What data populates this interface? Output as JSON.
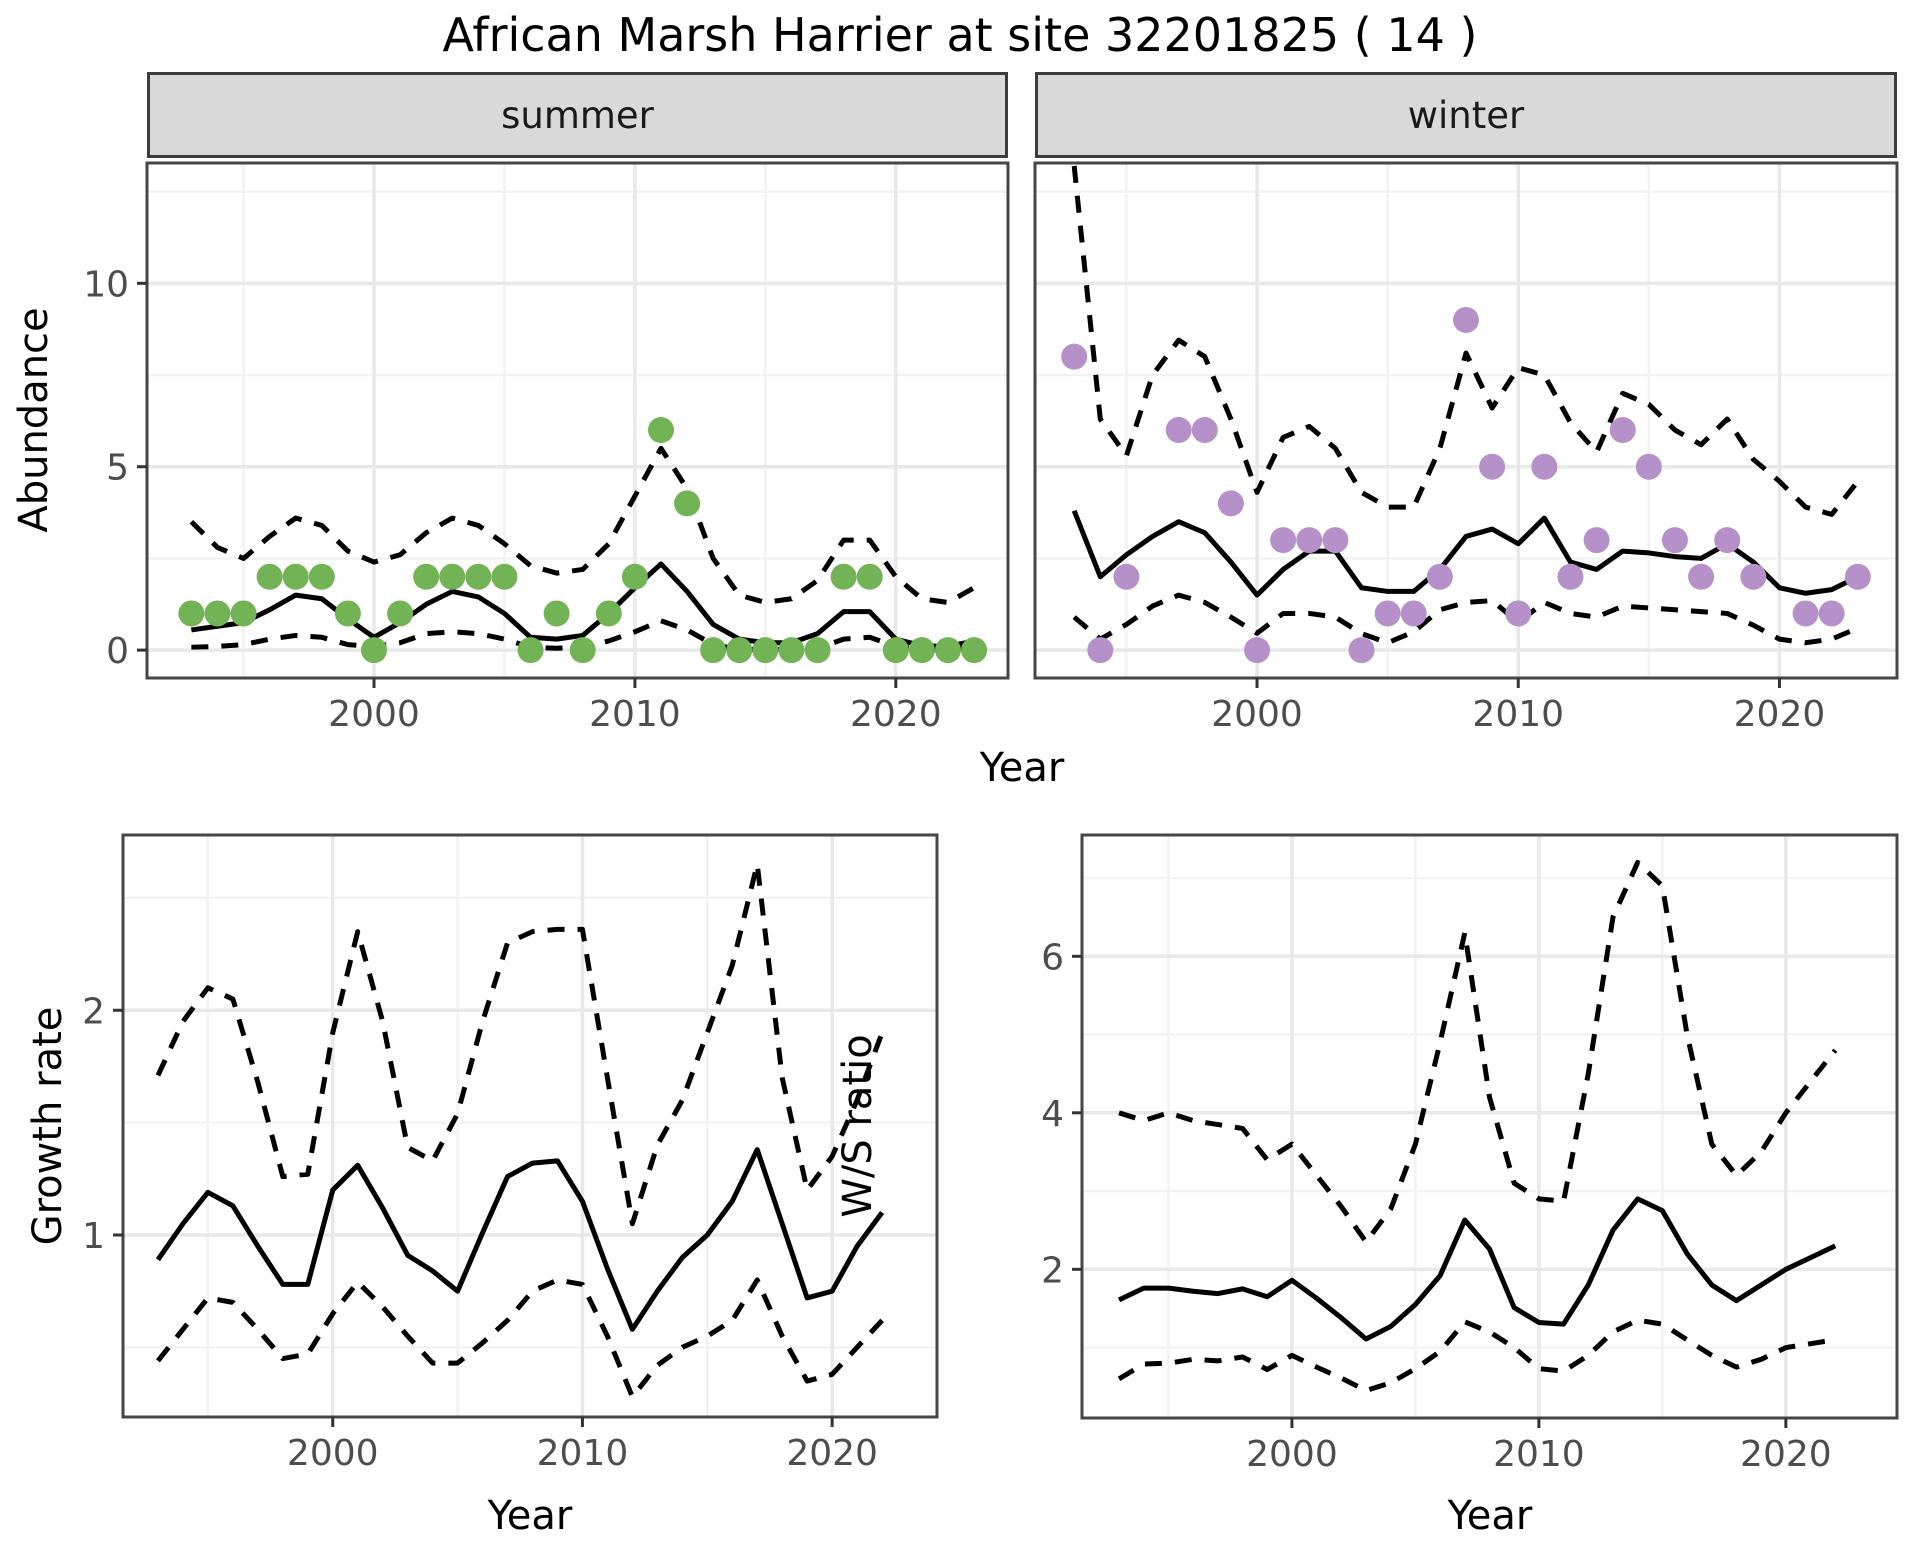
{
  "title": "African Marsh Harrier at site 32201825 ( 14 )",
  "facets": {
    "summer": "summer",
    "winter": "winter"
  },
  "axis_titles": {
    "abundance": "Abundance",
    "top_year": "Year",
    "growth_rate": "Growth rate",
    "growth_year": "Year",
    "ws_ratio": "W/S ratio",
    "ws_year": "Year"
  },
  "colors": {
    "summer_point": "#72b356",
    "winter_point": "#b691c9",
    "line": "#000000",
    "grid_major": "#e8e8e8",
    "grid_minor": "#f2f2f2",
    "panel_border": "#464646",
    "strip_bg": "#d9d9d9",
    "tick_text": "#4d4d4d",
    "tick_mark": "#333333"
  },
  "chart_data": [
    {
      "id": "abundance-summer",
      "type": "line",
      "title": "summer",
      "xlabel": "Year",
      "ylabel": "Abundance",
      "x": [
        1993,
        1994,
        1995,
        1996,
        1997,
        1998,
        1999,
        2000,
        2001,
        2002,
        2003,
        2004,
        2005,
        2006,
        2007,
        2008,
        2009,
        2010,
        2011,
        2012,
        2013,
        2014,
        2015,
        2016,
        2017,
        2018,
        2019,
        2020,
        2021,
        2022,
        2023
      ],
      "series": [
        {
          "name": "observed",
          "style": "points",
          "values": [
            1,
            1,
            1,
            2,
            2,
            2,
            1,
            0,
            1,
            2,
            2,
            2,
            2,
            0,
            1,
            0,
            1,
            2,
            6,
            4,
            0,
            0,
            0,
            0,
            0,
            2,
            2,
            0,
            0,
            0,
            0
          ]
        },
        {
          "name": "upper_ci",
          "style": "dashed",
          "values": [
            3.5,
            2.8,
            2.5,
            3.1,
            3.6,
            3.4,
            2.7,
            2.4,
            2.6,
            3.2,
            3.6,
            3.4,
            2.9,
            2.3,
            2.1,
            2.2,
            2.9,
            4.2,
            5.5,
            4.4,
            2.5,
            1.5,
            1.3,
            1.4,
            1.9,
            3.0,
            3.0,
            2.0,
            1.4,
            1.3,
            1.7
          ]
        },
        {
          "name": "lower_ci",
          "style": "dashed",
          "values": [
            0.08,
            0.1,
            0.15,
            0.3,
            0.4,
            0.35,
            0.15,
            0.1,
            0.2,
            0.45,
            0.5,
            0.45,
            0.3,
            0.08,
            0.05,
            0.08,
            0.25,
            0.5,
            0.8,
            0.55,
            0.15,
            0.02,
            0.02,
            0.02,
            0.05,
            0.3,
            0.35,
            0.1,
            0.02,
            0.02,
            0.05
          ]
        },
        {
          "name": "fit",
          "style": "solid",
          "values": [
            0.55,
            0.65,
            0.75,
            1.1,
            1.5,
            1.4,
            0.85,
            0.35,
            0.75,
            1.25,
            1.6,
            1.45,
            1.0,
            0.35,
            0.3,
            0.4,
            1.0,
            1.7,
            2.35,
            1.6,
            0.7,
            0.3,
            0.2,
            0.2,
            0.45,
            1.05,
            1.05,
            0.3,
            0.12,
            0.1,
            0.25
          ]
        }
      ],
      "xlim": [
        1991.3,
        2024.3
      ],
      "ylim": [
        -0.76,
        13.28
      ],
      "xticks": [
        2000,
        2010,
        2020
      ],
      "xticks_minor": [
        1995,
        2005,
        2015
      ],
      "yticks": [
        0,
        5,
        10
      ],
      "yticks_minor": [
        2.5,
        7.5,
        12.5
      ],
      "grid": true,
      "legend": "none"
    },
    {
      "id": "abundance-winter",
      "type": "line",
      "title": "winter",
      "xlabel": "Year",
      "ylabel": "Abundance",
      "x": [
        1993,
        1994,
        1995,
        1996,
        1997,
        1998,
        1999,
        2000,
        2001,
        2002,
        2003,
        2004,
        2005,
        2006,
        2007,
        2008,
        2009,
        2010,
        2011,
        2012,
        2013,
        2014,
        2015,
        2016,
        2017,
        2018,
        2019,
        2020,
        2021,
        2022,
        2023
      ],
      "series": [
        {
          "name": "observed",
          "style": "points",
          "values": [
            8,
            0,
            2,
            null,
            6,
            6,
            4,
            0,
            3,
            3,
            3,
            0,
            1,
            1,
            2,
            9,
            5,
            1,
            5,
            2,
            3,
            6,
            5,
            3,
            2,
            3,
            2,
            null,
            1,
            1,
            2
          ]
        },
        {
          "name": "upper_ci",
          "style": "dashed",
          "values": [
            13.2,
            6.3,
            5.3,
            7.5,
            8.45,
            8.0,
            6.3,
            4.3,
            5.8,
            6.1,
            5.5,
            4.3,
            3.9,
            3.9,
            5.5,
            8.1,
            6.6,
            7.7,
            7.5,
            6.2,
            5.4,
            7.0,
            6.7,
            6.0,
            5.6,
            6.3,
            5.2,
            4.6,
            3.9,
            3.7,
            4.6
          ]
        },
        {
          "name": "lower_ci",
          "style": "dashed",
          "values": [
            0.9,
            0.3,
            0.7,
            1.2,
            1.5,
            1.3,
            0.9,
            0.46,
            1.0,
            1.0,
            0.9,
            0.45,
            0.2,
            0.5,
            1.1,
            1.3,
            1.35,
            0.76,
            1.3,
            1.0,
            0.9,
            1.2,
            1.15,
            1.1,
            1.05,
            1.0,
            0.68,
            0.3,
            0.2,
            0.3,
            0.6
          ]
        },
        {
          "name": "fit",
          "style": "solid",
          "values": [
            3.8,
            2.0,
            2.6,
            3.1,
            3.5,
            3.2,
            2.4,
            1.5,
            2.2,
            2.7,
            2.7,
            1.7,
            1.6,
            1.6,
            2.2,
            3.1,
            3.3,
            2.9,
            3.6,
            2.4,
            2.2,
            2.7,
            2.65,
            2.55,
            2.5,
            2.9,
            2.4,
            1.7,
            1.55,
            1.65,
            2.0
          ]
        }
      ],
      "xlim": [
        1991.5,
        2024.5
      ],
      "ylim": [
        -0.76,
        13.28
      ],
      "xticks": [
        2000,
        2010,
        2020
      ],
      "xticks_minor": [
        1995,
        2005,
        2015
      ],
      "yticks": [
        0,
        5,
        10
      ],
      "yticks_minor": [
        2.5,
        7.5,
        12.5
      ],
      "grid": true,
      "legend": "none"
    },
    {
      "id": "growth-rate",
      "type": "line",
      "title": "",
      "xlabel": "Year",
      "ylabel": "Growth rate",
      "x": [
        1993,
        1994,
        1995,
        1996,
        1997,
        1998,
        1999,
        2000,
        2001,
        2002,
        2003,
        2004,
        2005,
        2006,
        2007,
        2008,
        2009,
        2010,
        2011,
        2012,
        2013,
        2014,
        2015,
        2016,
        2017,
        2018,
        2019,
        2020,
        2021,
        2022
      ],
      "series": [
        {
          "name": "upper_ci",
          "style": "dashed",
          "values": [
            1.71,
            1.95,
            2.1,
            2.05,
            1.68,
            1.26,
            1.27,
            1.9,
            2.35,
            1.95,
            1.39,
            1.33,
            1.54,
            1.95,
            2.3,
            2.35,
            2.36,
            2.36,
            1.7,
            1.05,
            1.4,
            1.6,
            1.9,
            2.2,
            2.65,
            1.7,
            1.2,
            1.35,
            1.6,
            1.9
          ]
        },
        {
          "name": "lower_ci",
          "style": "dashed",
          "values": [
            0.44,
            0.58,
            0.72,
            0.7,
            0.58,
            0.45,
            0.47,
            0.65,
            0.79,
            0.68,
            0.55,
            0.43,
            0.43,
            0.52,
            0.62,
            0.75,
            0.8,
            0.78,
            0.55,
            0.28,
            0.42,
            0.5,
            0.55,
            0.62,
            0.8,
            0.55,
            0.35,
            0.38,
            0.5,
            0.62
          ]
        },
        {
          "name": "fit",
          "style": "solid",
          "values": [
            0.89,
            1.05,
            1.19,
            1.13,
            0.95,
            0.78,
            0.78,
            1.2,
            1.31,
            1.12,
            0.91,
            0.84,
            0.75,
            1.01,
            1.26,
            1.32,
            1.33,
            1.15,
            0.85,
            0.58,
            0.75,
            0.9,
            1.0,
            1.15,
            1.38,
            1.05,
            0.72,
            0.75,
            0.95,
            1.1
          ]
        }
      ],
      "xlim": [
        1991.6,
        2024.2
      ],
      "ylim": [
        0.19,
        2.78
      ],
      "xticks": [
        2000,
        2010,
        2020
      ],
      "xticks_minor": [
        1995,
        2005,
        2015
      ],
      "yticks": [
        1,
        2
      ],
      "yticks_minor": [
        0.5,
        1.5,
        2.5
      ],
      "grid": true,
      "legend": "none"
    },
    {
      "id": "ws-ratio",
      "type": "line",
      "title": "",
      "xlabel": "Year",
      "ylabel": "W/S ratio",
      "x": [
        1993,
        1994,
        1995,
        1996,
        1997,
        1998,
        1999,
        2000,
        2001,
        2002,
        2003,
        2004,
        2005,
        2006,
        2007,
        2008,
        2009,
        2010,
        2011,
        2012,
        2013,
        2014,
        2015,
        2016,
        2017,
        2018,
        2019,
        2020,
        2021,
        2022
      ],
      "series": [
        {
          "name": "upper_ci",
          "style": "dashed",
          "values": [
            4.0,
            3.9,
            4.0,
            3.9,
            3.85,
            3.8,
            3.4,
            3.6,
            3.2,
            2.8,
            2.35,
            2.77,
            3.6,
            4.9,
            6.3,
            4.2,
            3.1,
            2.9,
            2.87,
            4.5,
            6.5,
            7.2,
            6.9,
            5.0,
            3.6,
            3.2,
            3.5,
            4.0,
            4.4,
            4.8
          ]
        },
        {
          "name": "lower_ci",
          "style": "dashed",
          "values": [
            0.6,
            0.79,
            0.8,
            0.85,
            0.83,
            0.88,
            0.72,
            0.9,
            0.75,
            0.61,
            0.45,
            0.55,
            0.73,
            0.95,
            1.33,
            1.2,
            1.0,
            0.73,
            0.7,
            0.9,
            1.2,
            1.35,
            1.3,
            1.1,
            0.9,
            0.75,
            0.85,
            1.0,
            1.05,
            1.1
          ]
        },
        {
          "name": "fit",
          "style": "solid",
          "values": [
            1.61,
            1.76,
            1.76,
            1.72,
            1.69,
            1.75,
            1.65,
            1.86,
            1.63,
            1.38,
            1.11,
            1.27,
            1.55,
            1.92,
            2.63,
            2.26,
            1.51,
            1.32,
            1.3,
            1.8,
            2.5,
            2.9,
            2.75,
            2.2,
            1.8,
            1.6,
            1.8,
            2.0,
            2.15,
            2.3
          ]
        }
      ],
      "xlim": [
        1991.5,
        2024.5
      ],
      "ylim": [
        0.1,
        7.55
      ],
      "xticks": [
        2000,
        2010,
        2020
      ],
      "xticks_minor": [
        1995,
        2005,
        2015
      ],
      "yticks": [
        2,
        4,
        6
      ],
      "yticks_minor": [
        1,
        3,
        5,
        7
      ],
      "grid": true,
      "legend": "none"
    }
  ]
}
